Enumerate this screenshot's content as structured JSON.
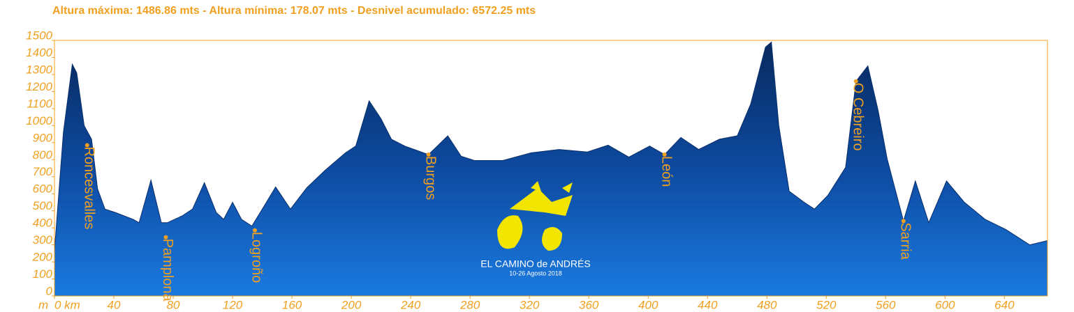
{
  "chart_data": {
    "type": "area",
    "title": "Altura máxima: 1486.86 mts - Altura mínima: 178.07 mts - Desnivel acumulado: 6572.25 mts",
    "y_label": "m",
    "x": [
      0,
      6,
      12,
      15,
      20,
      25,
      29,
      34,
      41,
      53,
      57,
      65,
      72,
      76,
      86,
      93,
      101,
      109,
      114,
      120,
      126,
      133,
      140,
      149,
      159,
      170,
      182,
      196,
      203,
      212,
      220,
      227,
      236,
      252,
      265,
      274,
      283,
      302,
      321,
      340,
      359,
      373,
      387,
      401,
      411,
      422,
      434,
      448,
      460,
      469,
      479,
      483,
      488,
      495,
      505,
      512,
      521,
      533,
      540,
      548,
      555,
      561,
      572,
      580,
      589,
      601,
      613,
      627,
      641,
      657,
      669
    ],
    "series": [
      {
        "name": "Altura",
        "color": "#0a2f6b",
        "values": [
          265,
          960,
          1360,
          1310,
          1000,
          920,
          630,
          510,
          490,
          450,
          430,
          680,
          430,
          430,
          470,
          510,
          665,
          490,
          450,
          550,
          450,
          410,
          510,
          640,
          510,
          635,
          735,
          840,
          880,
          1145,
          1040,
          920,
          880,
          830,
          940,
          820,
          795,
          795,
          840,
          860,
          845,
          885,
          815,
          880,
          830,
          930,
          860,
          920,
          940,
          1125,
          1460,
          1490,
          1000,
          615,
          550,
          510,
          590,
          755,
          1260,
          1350,
          1085,
          805,
          440,
          675,
          430,
          675,
          550,
          450,
          390,
          300,
          325
        ]
      }
    ],
    "annotations": [
      {
        "text": "Roncesvalles",
        "x": 22,
        "y": 885
      },
      {
        "text": "Pamplona",
        "x": 75,
        "y": 345
      },
      {
        "text": "Logroño",
        "x": 135,
        "y": 385
      },
      {
        "text": "Burgos",
        "x": 252,
        "y": 830
      },
      {
        "text": "León",
        "x": 411,
        "y": 830
      },
      {
        "text": "O Cebreiro",
        "x": 540,
        "y": 1260
      },
      {
        "text": "Sarria",
        "x": 572,
        "y": 440
      }
    ],
    "logo_title": "EL CAMINO de ANDRÉS",
    "logo_subtitle": "10-26 Agosto 2018",
    "xlim": [
      0,
      669
    ],
    "xticks": [
      {
        "value": 0,
        "label": "0 km"
      },
      40,
      80,
      120,
      160,
      200,
      240,
      280,
      320,
      360,
      400,
      440,
      480,
      520,
      560,
      600,
      640
    ],
    "ylim": [
      0,
      1500
    ],
    "yticks": [
      0,
      100,
      200,
      300,
      400,
      500,
      600,
      700,
      800,
      900,
      1000,
      1100,
      1200,
      1300,
      1400,
      1500
    ]
  }
}
